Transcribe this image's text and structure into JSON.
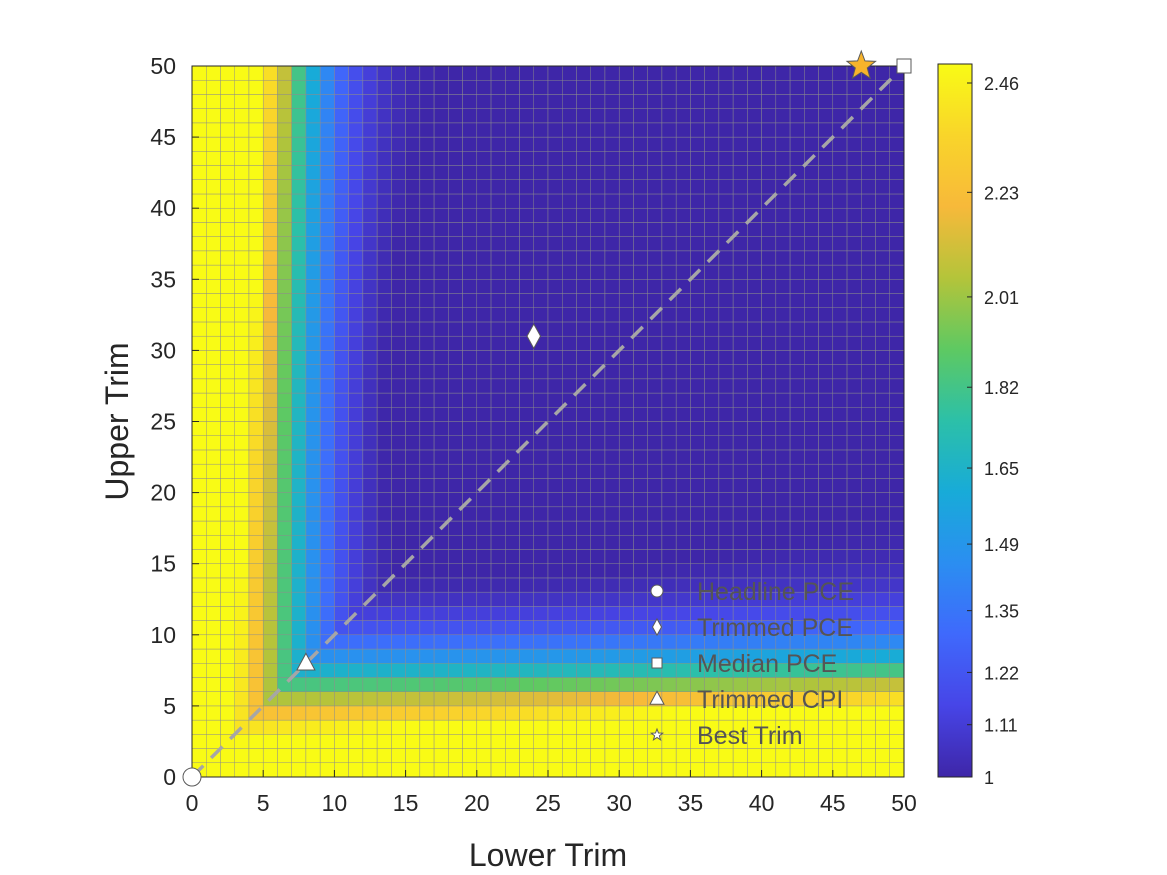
{
  "chart_data": {
    "type": "heatmap",
    "title": "",
    "xlabel": "Lower Trim",
    "ylabel": "Upper Trim",
    "xlim": [
      0,
      50
    ],
    "ylim": [
      0,
      50
    ],
    "xticks": [
      "0",
      "5",
      "10",
      "15",
      "20",
      "25",
      "30",
      "35",
      "40",
      "45",
      "50"
    ],
    "yticks": [
      "0",
      "5",
      "10",
      "15",
      "20",
      "25",
      "30",
      "35",
      "40",
      "45",
      "50"
    ],
    "grid_resolution": 1,
    "diagonal_reference_line": true,
    "grid": true,
    "colorbar": {
      "min": 1,
      "max": 2.5,
      "ticks": [
        {
          "value": 1,
          "label": "1"
        },
        {
          "value": 1.11,
          "label": "1.11"
        },
        {
          "value": 1.22,
          "label": "1.22"
        },
        {
          "value": 1.35,
          "label": "1.35"
        },
        {
          "value": 1.49,
          "label": "1.49"
        },
        {
          "value": 1.65,
          "label": "1.65"
        },
        {
          "value": 1.82,
          "label": "1.82"
        },
        {
          "value": 2.01,
          "label": "2.01"
        },
        {
          "value": 2.23,
          "label": "2.23"
        },
        {
          "value": 2.46,
          "label": "2.46"
        }
      ],
      "colormap": [
        "#3e26a8",
        "#4745e7",
        "#3f69fc",
        "#2b8ef1",
        "#18abd8",
        "#2cc0a8",
        "#5ec962",
        "#b4c43a",
        "#f7b93a",
        "#f9d52a",
        "#f9fb15"
      ]
    },
    "markers": [
      {
        "name": "Headline PCE",
        "x": 0,
        "y": 0,
        "shape": "circle",
        "color": "#ffffff"
      },
      {
        "name": "Trimmed PCE",
        "x": 24,
        "y": 31,
        "shape": "diamond",
        "color": "#ffffff"
      },
      {
        "name": "Median PCE",
        "x": 50,
        "y": 50,
        "shape": "square",
        "color": "#ffffff"
      },
      {
        "name": "Trimmed CPI",
        "x": 8,
        "y": 8,
        "shape": "triangle",
        "color": "#ffffff"
      },
      {
        "name": "Best Trim",
        "x": 47,
        "y": 50,
        "shape": "star",
        "color": "#f7b32b"
      }
    ],
    "legend": {
      "position": "bottom-right",
      "entries": [
        "Headline PCE",
        "Trimmed PCE",
        "Median PCE",
        "Trimmed CPI",
        "Best Trim"
      ]
    }
  }
}
